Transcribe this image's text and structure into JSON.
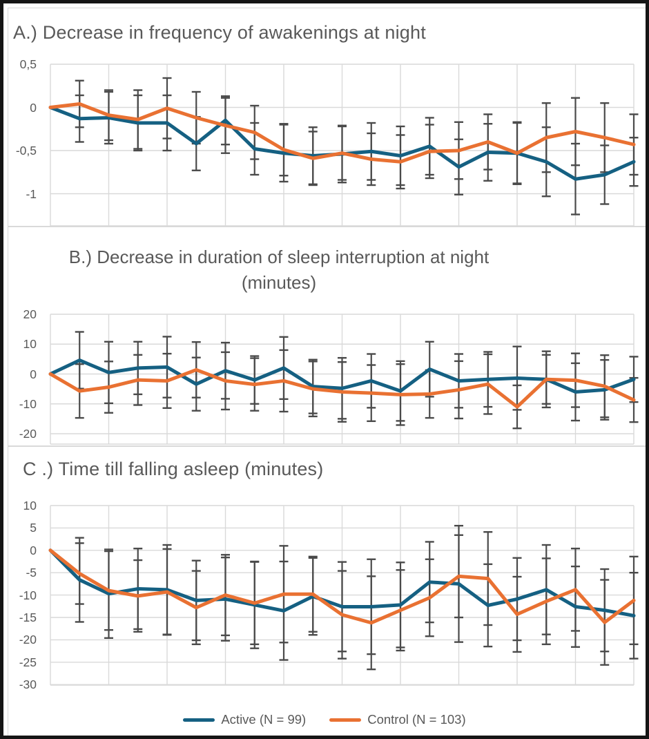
{
  "figure": {
    "description": "Three stacked line charts with error bars comparing Active and Control groups over 21 time points",
    "frame_color": "#151515",
    "background": "#ffffff"
  },
  "colors": {
    "active": "#156082",
    "control": "#E97132",
    "grid": "#d9d9d9",
    "error_bar": "#4a4a4a",
    "text": "#595959",
    "panel_border": "#d9d9d9"
  },
  "legend": {
    "items": [
      {
        "label": "Active (N = 99)",
        "color": "#156082"
      },
      {
        "label": "Control (N = 103)",
        "color": "#E97132"
      }
    ]
  },
  "chart_data": [
    {
      "id": "A",
      "type": "line",
      "title": "A.) Decrease in frequency of awakenings at night",
      "x": [
        0,
        1,
        2,
        3,
        4,
        5,
        6,
        7,
        8,
        9,
        10,
        11,
        12,
        13,
        14,
        15,
        16,
        17,
        18,
        19,
        20
      ],
      "x_tick_labels_visible": false,
      "grid": true,
      "legend_position": "shared-bottom",
      "ylim": [
        -1.37,
        0.5
      ],
      "y_ticks": [
        {
          "label": "0,5",
          "value": 0.5
        },
        {
          "label": "0",
          "value": 0
        },
        {
          "label": "-0,5",
          "value": -0.5
        },
        {
          "label": "-1",
          "value": -1
        }
      ],
      "series": [
        {
          "name": "Active (N = 99)",
          "color": "#156082",
          "values": [
            0,
            -0.13,
            -0.12,
            -0.18,
            -0.18,
            -0.42,
            -0.15,
            -0.48,
            -0.53,
            -0.56,
            -0.54,
            -0.51,
            -0.56,
            -0.45,
            -0.69,
            -0.52,
            -0.53,
            -0.63,
            -0.83,
            -0.78,
            -0.63
          ],
          "errors": [
            0,
            0.27,
            0.3,
            0.32,
            0.32,
            0.31,
            0.28,
            0.3,
            0.33,
            0.33,
            0.33,
            0.33,
            0.34,
            0.33,
            0.32,
            0.33,
            0.36,
            0.4,
            0.41,
            0.34,
            0.28
          ]
        },
        {
          "name": "Control (N = 103)",
          "color": "#E97132",
          "values": [
            0,
            0.04,
            -0.09,
            -0.14,
            -0.01,
            -0.12,
            -0.21,
            -0.29,
            -0.49,
            -0.59,
            -0.53,
            -0.6,
            -0.63,
            -0.51,
            -0.5,
            -0.4,
            -0.53,
            -0.35,
            -0.28,
            -0.35,
            -0.43
          ],
          "errors": [
            0,
            0.27,
            0.29,
            0.34,
            0.35,
            0.3,
            0.32,
            0.31,
            0.3,
            0.31,
            0.31,
            0.3,
            0.31,
            0.31,
            0.33,
            0.32,
            0.35,
            0.4,
            0.39,
            0.4,
            0.35
          ]
        }
      ]
    },
    {
      "id": "B",
      "type": "line",
      "title": "B.) Decrease in duration of sleep interruption at night",
      "title_line2": "(minutes)",
      "x": [
        0,
        1,
        2,
        3,
        4,
        5,
        6,
        7,
        8,
        9,
        10,
        11,
        12,
        13,
        14,
        15,
        16,
        17,
        18,
        19,
        20
      ],
      "x_tick_labels_visible": false,
      "grid": true,
      "legend_position": "shared-bottom",
      "ylim": [
        -23.5,
        20
      ],
      "y_ticks": [
        {
          "label": "20",
          "value": 20
        },
        {
          "label": "10",
          "value": 10
        },
        {
          "label": "0",
          "value": 0
        },
        {
          "label": "-10",
          "value": -10
        },
        {
          "label": "-20",
          "value": -20
        }
      ],
      "series": [
        {
          "name": "Active (N = 99)",
          "color": "#156082",
          "values": [
            0,
            4.6,
            0.5,
            2.0,
            2.3,
            -3.4,
            1.1,
            -2.0,
            2.0,
            -4.2,
            -4.8,
            -2.3,
            -5.7,
            1.6,
            -2.3,
            -1.8,
            -1.4,
            -1.8,
            -6.0,
            -5.3,
            -1.8
          ],
          "errors": [
            0,
            9.5,
            10.3,
            8.8,
            10.2,
            8.9,
            9.4,
            8.0,
            10.4,
            9.0,
            10.2,
            9.0,
            10.0,
            9.2,
            9.0,
            9.2,
            10.6,
            8.2,
            9.6,
            10.0,
            7.6
          ]
        },
        {
          "name": "Control (N = 103)",
          "color": "#E97132",
          "values": [
            0,
            -5.7,
            -4.4,
            -2.0,
            -2.3,
            1.4,
            -2.3,
            -3.5,
            -2.3,
            -5.0,
            -6.0,
            -6.4,
            -6.9,
            -6.7,
            -5.3,
            -3.4,
            -11.0,
            -1.8,
            -2.1,
            -4.1,
            -8.7
          ],
          "errors": [
            0,
            9.0,
            8.6,
            8.4,
            9.1,
            9.3,
            9.6,
            8.8,
            10.3,
            9.2,
            10.0,
            9.4,
            10.2,
            8.0,
            9.6,
            10.0,
            7.2,
            9.4,
            9.0,
            10.4,
            7.4
          ]
        }
      ]
    },
    {
      "id": "C",
      "type": "line",
      "title": "C .) Time till falling asleep (minutes)",
      "x": [
        0,
        1,
        2,
        3,
        4,
        5,
        6,
        7,
        8,
        9,
        10,
        11,
        12,
        13,
        14,
        15,
        16,
        17,
        18,
        19,
        20
      ],
      "x_tick_labels_visible": false,
      "grid": true,
      "legend_position": "shared-bottom",
      "ylim": [
        -30,
        10
      ],
      "y_ticks": [
        {
          "label": "10",
          "value": 10
        },
        {
          "label": "5",
          "value": 5
        },
        {
          "label": "0",
          "value": 0
        },
        {
          "label": "-5",
          "value": -5
        },
        {
          "label": "-10",
          "value": -10
        },
        {
          "label": "-15",
          "value": -15
        },
        {
          "label": "-20",
          "value": -20
        },
        {
          "label": "-25",
          "value": -25
        },
        {
          "label": "-30",
          "value": -30
        }
      ],
      "series": [
        {
          "name": "Active (N = 99)",
          "color": "#156082",
          "values": [
            0,
            -6.6,
            -9.7,
            -8.6,
            -8.8,
            -11.2,
            -10.9,
            -12.2,
            -13.5,
            -10.3,
            -12.6,
            -12.6,
            -12.2,
            -7.1,
            -7.5,
            -12.3,
            -10.9,
            -8.8,
            -12.6,
            -13.4,
            -14.6
          ],
          "errors": [
            0,
            9.4,
            9.9,
            9.0,
            10.0,
            8.9,
            9.3,
            9.7,
            11.0,
            8.6,
            10.0,
            10.6,
            9.5,
            9.0,
            13.0,
            9.2,
            9.2,
            10.0,
            9.0,
            9.2,
            9.6
          ]
        },
        {
          "name": "Control (N = 103)",
          "color": "#E97132",
          "values": [
            0,
            -5.2,
            -9.0,
            -10.2,
            -9.3,
            -12.8,
            -10.0,
            -11.8,
            -9.8,
            -9.8,
            -14.4,
            -16.2,
            -13.4,
            -10.6,
            -5.8,
            -6.3,
            -14.3,
            -11.4,
            -8.8,
            -16.1,
            -11.2
          ],
          "errors": [
            0,
            6.8,
            8.8,
            8.0,
            9.6,
            8.2,
            9.0,
            9.2,
            10.8,
            8.4,
            9.8,
            10.4,
            9.0,
            8.6,
            9.2,
            10.4,
            8.4,
            9.6,
            9.2,
            9.5,
            9.8
          ]
        }
      ]
    }
  ]
}
